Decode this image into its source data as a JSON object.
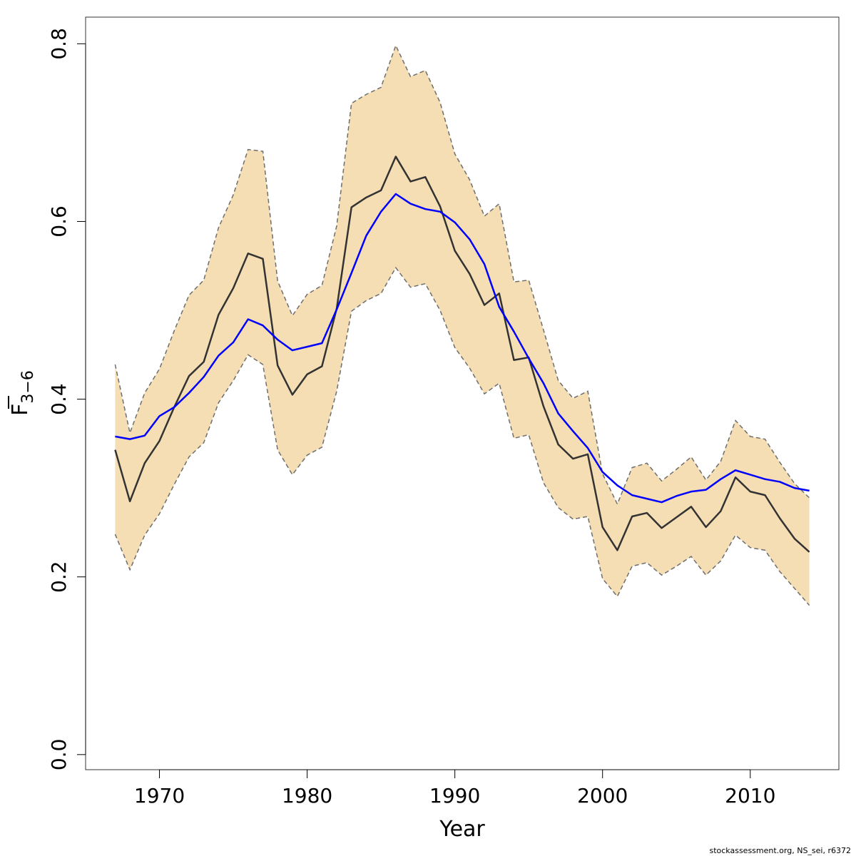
{
  "chart_data": {
    "type": "line",
    "xlabel": "Year",
    "ylabel": {
      "main": "F",
      "sub": "3−6"
    },
    "xlim": [
      1965,
      2016
    ],
    "ylim": [
      -0.017,
      0.83
    ],
    "xticks": [
      1970,
      1980,
      1990,
      2000,
      2010
    ],
    "yticks": [
      0.0,
      0.2,
      0.4,
      0.6,
      0.8
    ],
    "ytick_labels": [
      "0.0",
      "0.2",
      "0.4",
      "0.6",
      "0.8"
    ],
    "grid": false,
    "x": [
      1967,
      1968,
      1969,
      1970,
      1971,
      1972,
      1973,
      1974,
      1975,
      1976,
      1977,
      1978,
      1979,
      1980,
      1981,
      1982,
      1983,
      1984,
      1985,
      1986,
      1987,
      1988,
      1989,
      1990,
      1991,
      1992,
      1993,
      1994,
      1995,
      1996,
      1997,
      1998,
      1999,
      2000,
      2001,
      2002,
      2003,
      2004,
      2005,
      2006,
      2007,
      2008,
      2009,
      2010,
      2011,
      2012,
      2013,
      2014
    ],
    "series": [
      {
        "role": "estimate",
        "color": "#333333",
        "values": [
          0.343,
          0.285,
          0.328,
          0.353,
          0.391,
          0.426,
          0.442,
          0.495,
          0.525,
          0.564,
          0.558,
          0.438,
          0.405,
          0.428,
          0.437,
          0.502,
          0.616,
          0.627,
          0.635,
          0.673,
          0.645,
          0.65,
          0.617,
          0.567,
          0.541,
          0.506,
          0.519,
          0.444,
          0.447,
          0.392,
          0.349,
          0.333,
          0.338,
          0.256,
          0.23,
          0.268,
          0.272,
          0.255,
          0.267,
          0.279,
          0.256,
          0.274,
          0.312,
          0.296,
          0.292,
          0.266,
          0.243,
          0.228
        ]
      },
      {
        "role": "comparison",
        "color": "#0000ff",
        "values": [
          0.358,
          0.355,
          0.359,
          0.381,
          0.391,
          0.407,
          0.425,
          0.449,
          0.464,
          0.49,
          0.483,
          0.467,
          0.455,
          0.459,
          0.463,
          0.501,
          0.542,
          0.584,
          0.611,
          0.631,
          0.62,
          0.614,
          0.611,
          0.599,
          0.58,
          0.552,
          0.504,
          0.476,
          0.446,
          0.418,
          0.384,
          0.364,
          0.345,
          0.318,
          0.303,
          0.292,
          0.288,
          0.284,
          0.291,
          0.296,
          0.298,
          0.31,
          0.32,
          0.315,
          0.31,
          0.307,
          0.3,
          0.297
        ]
      }
    ],
    "band": {
      "color": "#f5deb3",
      "edge_color": "#6e6e6e",
      "upper": [
        0.439,
        0.362,
        0.407,
        0.434,
        0.477,
        0.517,
        0.534,
        0.593,
        0.63,
        0.681,
        0.679,
        0.533,
        0.494,
        0.518,
        0.528,
        0.595,
        0.733,
        0.743,
        0.751,
        0.798,
        0.763,
        0.77,
        0.734,
        0.676,
        0.647,
        0.606,
        0.62,
        0.532,
        0.534,
        0.478,
        0.421,
        0.401,
        0.409,
        0.316,
        0.282,
        0.323,
        0.328,
        0.308,
        0.321,
        0.335,
        0.309,
        0.33,
        0.376,
        0.358,
        0.355,
        0.329,
        0.305,
        0.289
      ],
      "lower": [
        0.248,
        0.208,
        0.247,
        0.271,
        0.304,
        0.335,
        0.351,
        0.396,
        0.421,
        0.45,
        0.439,
        0.343,
        0.315,
        0.337,
        0.346,
        0.409,
        0.499,
        0.511,
        0.519,
        0.548,
        0.526,
        0.53,
        0.5,
        0.458,
        0.435,
        0.406,
        0.418,
        0.356,
        0.36,
        0.306,
        0.278,
        0.265,
        0.268,
        0.198,
        0.178,
        0.212,
        0.216,
        0.202,
        0.212,
        0.223,
        0.202,
        0.218,
        0.247,
        0.233,
        0.23,
        0.206,
        0.187,
        0.168
      ]
    },
    "credit": "stockassessment.org, NS_sei, r6372"
  }
}
